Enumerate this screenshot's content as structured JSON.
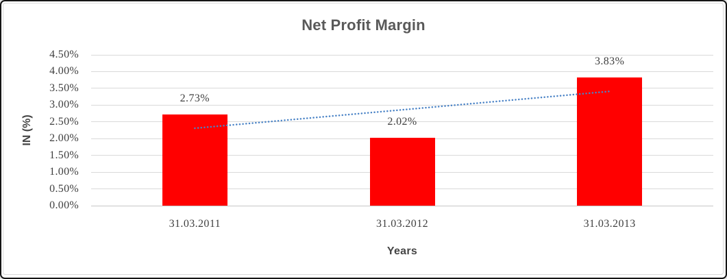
{
  "chart_data": {
    "type": "bar",
    "title": "Net Profit Margin",
    "xlabel": "Years",
    "ylabel": "IN (%)",
    "categories": [
      "31.03.2011",
      "31.03.2012",
      "31.03.2013"
    ],
    "values": [
      2.73,
      2.02,
      3.83
    ],
    "data_labels": [
      "2.73%",
      "2.02%",
      "3.83%"
    ],
    "ylim": [
      0,
      4.5
    ],
    "ytick_step": 0.5,
    "ytick_labels": [
      "0.00%",
      "0.50%",
      "1.00%",
      "1.50%",
      "2.00%",
      "2.50%",
      "3.00%",
      "3.50%",
      "4.00%",
      "4.50%"
    ],
    "grid": true,
    "legend": "none",
    "bar_color": "#ff0000",
    "gridline_color": "#d9d9d9",
    "title_color": "#595959",
    "label_color": "#3f3f3f",
    "trendline": {
      "style": "dotted",
      "color": "#4a83c6",
      "start_value": 2.31,
      "end_value": 3.41
    }
  }
}
